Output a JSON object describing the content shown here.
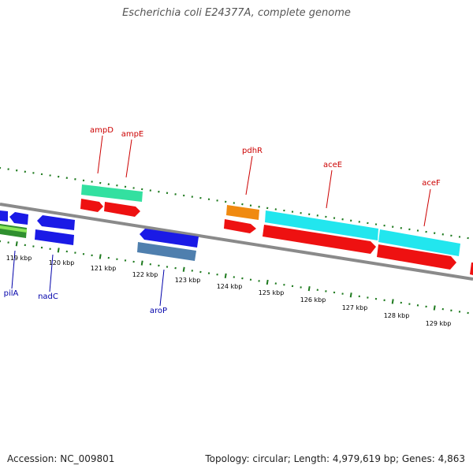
{
  "title": "Escherichia coli E24377A, complete genome",
  "footer": {
    "accession": "Accession: NC_009801",
    "summary": "Topology: circular; Length: 4,979,619 bp; Genes: 4,863"
  },
  "colors": {
    "backbone": "#8a8a8a",
    "tick": "#1e7a1e",
    "label_top": "#cc0000",
    "label_bottom": "#0000aa",
    "gene_blue": "#1a1ae6",
    "gene_red": "#ee1111",
    "gene_cyan": "#22e6ee",
    "gene_teal": "#33e0a0",
    "gene_orange": "#f08a10",
    "gene_steel": "#4f7fae",
    "gene_lime": "#8ae65a"
  },
  "scale_labels": [
    "119 kbp",
    "120 kbp",
    "121 kbp",
    "122 kbp",
    "123 kbp",
    "124 kbp",
    "125 kbp",
    "126 kbp",
    "127 kbp",
    "128 kbp",
    "129 kbp"
  ],
  "gene_labels": {
    "top": [
      "ampD",
      "ampE",
      "pdhR",
      "aceE",
      "aceF"
    ],
    "bottom": [
      "pilA",
      "nadC",
      "aroP"
    ]
  }
}
